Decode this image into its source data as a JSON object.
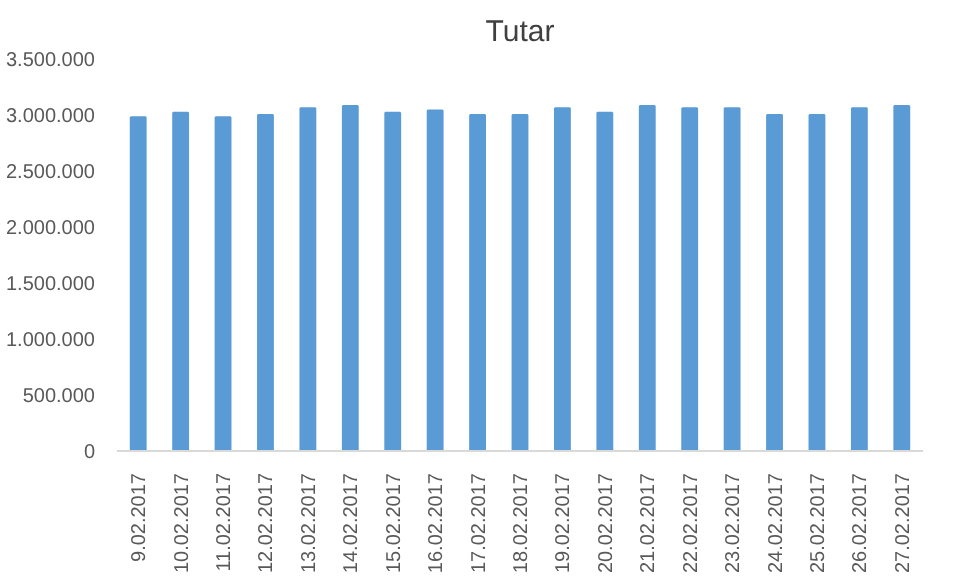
{
  "chart_data": {
    "type": "bar",
    "title": "Tutar",
    "categories": [
      "9.02.2017",
      "10.02.2017",
      "11.02.2017",
      "12.02.2017",
      "13.02.2017",
      "14.02.2017",
      "15.02.2017",
      "16.02.2017",
      "17.02.2017",
      "18.02.2017",
      "19.02.2017",
      "20.02.2017",
      "21.02.2017",
      "22.02.2017",
      "23.02.2017",
      "24.02.2017",
      "25.02.2017",
      "26.02.2017",
      "27.02.2017"
    ],
    "values": [
      2980000,
      3020000,
      2980000,
      3000000,
      3060000,
      3080000,
      3020000,
      3040000,
      3000000,
      3000000,
      3060000,
      3020000,
      3080000,
      3060000,
      3060000,
      3000000,
      3000000,
      3060000,
      3080000
    ],
    "color": "#5b9bd5",
    "ylim": [
      0,
      3500000
    ],
    "yticks": [
      {
        "value": 0,
        "label": "0"
      },
      {
        "value": 500000,
        "label": "500.000"
      },
      {
        "value": 1000000,
        "label": "1.000.000"
      },
      {
        "value": 1500000,
        "label": "1.500.000"
      },
      {
        "value": 2000000,
        "label": "2.000.000"
      },
      {
        "value": 2500000,
        "label": "2.500.000"
      },
      {
        "value": 3000000,
        "label": "3.000.000"
      },
      {
        "value": 3500000,
        "label": "3.500.000"
      }
    ],
    "grid": false
  }
}
